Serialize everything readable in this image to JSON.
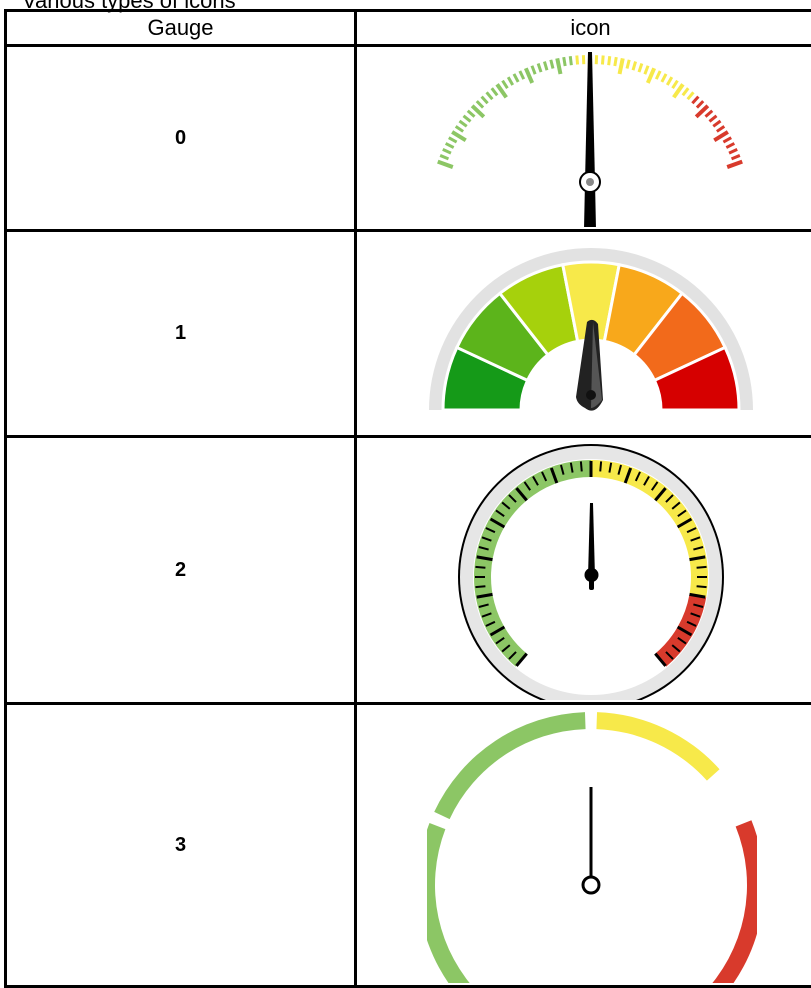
{
  "caption": "Various types of icons",
  "table": {
    "headers": [
      "Gauge",
      "icon"
    ],
    "rows": [
      {
        "label": "0",
        "icon": "tick-scale-gauge-icon"
      },
      {
        "label": "1",
        "icon": "segmented-color-gauge-icon"
      },
      {
        "label": "2",
        "icon": "round-dial-gauge-icon"
      },
      {
        "label": "3",
        "icon": "arc-band-gauge-icon"
      }
    ]
  },
  "colors": {
    "green": "#8cc665",
    "dark_green": "#159a18",
    "yellow": "#f7e94a",
    "orange": "#f8a81b",
    "red_orange": "#f26a1b",
    "red": "#d83a2c",
    "grey": "#e2e2e2",
    "needle": "#000000"
  }
}
